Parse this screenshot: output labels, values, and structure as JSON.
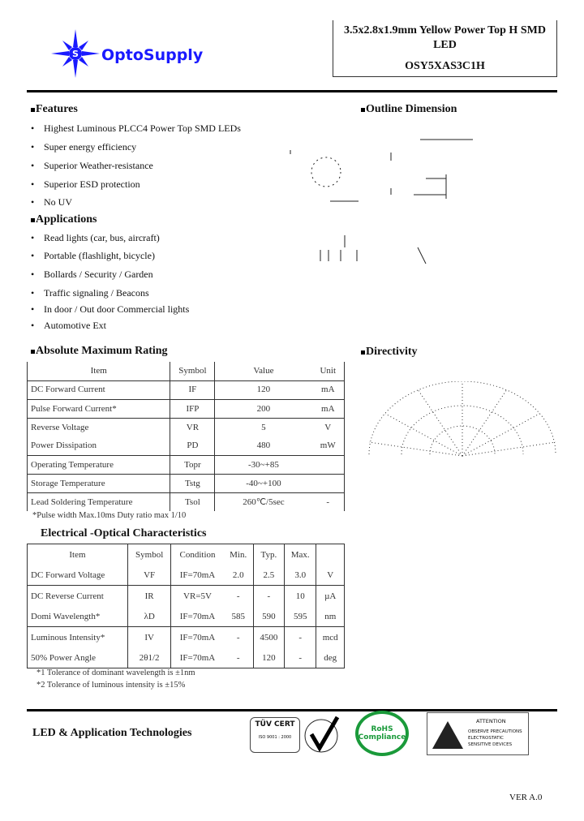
{
  "header": {
    "brand": "OptoSupply",
    "title_line1": "3.5x2.8x1.9mm Yellow Power Top H SMD",
    "title_line2": "LED",
    "part_number": "OSY5XAS3C1H",
    "brand_color": "#1a1aff"
  },
  "features": {
    "heading": "Features",
    "items": [
      "Highest Luminous PLCC4 Power Top SMD LEDs",
      "Super energy efficiency",
      "Superior Weather-resistance",
      "Superior ESD protection",
      "No UV"
    ]
  },
  "applications": {
    "heading": "Applications",
    "items": [
      "Read lights (car, bus, aircraft)",
      "Portable (flashlight, bicycle)",
      "Bollards / Security / Garden",
      "Traffic signaling / Beacons",
      "In door / Out door Commercial lights",
      "Automotive Ext"
    ]
  },
  "outline": {
    "heading": "Outline Dimension"
  },
  "directivity": {
    "heading": "Directivity"
  },
  "abs_max": {
    "heading": "Absolute Maximum Rating",
    "columns": [
      "Item",
      "Symbol",
      "Value",
      "Unit"
    ],
    "rows": [
      [
        "DC Forward Current",
        "IF",
        "120",
        "mA"
      ],
      [
        "Pulse Forward Current*",
        "IFP",
        "200",
        "mA"
      ],
      [
        "Reverse Voltage",
        "VR",
        "5",
        "V"
      ],
      [
        "Power Dissipation",
        "PD",
        "480",
        "mW"
      ],
      [
        "Operating Temperature",
        "Topr",
        "-30~+85",
        ""
      ],
      [
        "Storage Temperature",
        "Tstg",
        "-40~+100",
        ""
      ],
      [
        "Lead Soldering Temperature",
        "Tsol",
        "260℃/5sec",
        "-"
      ]
    ],
    "note": "*Pulse width Max.10ms Duty ratio max 1/10"
  },
  "eo": {
    "heading": "Electrical -Optical Characteristics",
    "columns": [
      "Item",
      "Symbol",
      "Condition",
      "Min.",
      "Typ.",
      "Max.",
      ""
    ],
    "rows": [
      [
        "DC Forward Voltage",
        "VF",
        "IF=70mA",
        "2.0",
        "2.5",
        "3.0",
        "V"
      ],
      [
        "DC Reverse Current",
        "IR",
        "VR=5V",
        "-",
        "-",
        "10",
        "µA"
      ],
      [
        "Domi Wavelength*",
        "λD",
        "IF=70mA",
        "585",
        "590",
        "595",
        "nm"
      ],
      [
        "Luminous Intensity*",
        "IV",
        "IF=70mA",
        "-",
        "4500",
        "-",
        "mcd"
      ],
      [
        "50% Power Angle",
        "2θ1/2",
        "IF=70mA",
        "-",
        "120",
        "-",
        "deg"
      ]
    ],
    "notes": [
      "*1 Tolerance of dominant wavelength is ±1nm",
      "*2 Tolerance of luminous intensity is ±15%"
    ]
  },
  "footer": {
    "company": "LED & Application Technologies",
    "tuv": "TÜV CERT",
    "iso": "ISO 9001 : 2000",
    "rohs": "RoHS Compliance",
    "esd_title": "ATTENTION",
    "esd_lines": [
      "OBSERVE PRECAUTIONS",
      "ELECTROSTATIC",
      "SENSITIVE DEVICES"
    ],
    "version": "VER A.0",
    "rohs_color": "#1a9a3a"
  }
}
